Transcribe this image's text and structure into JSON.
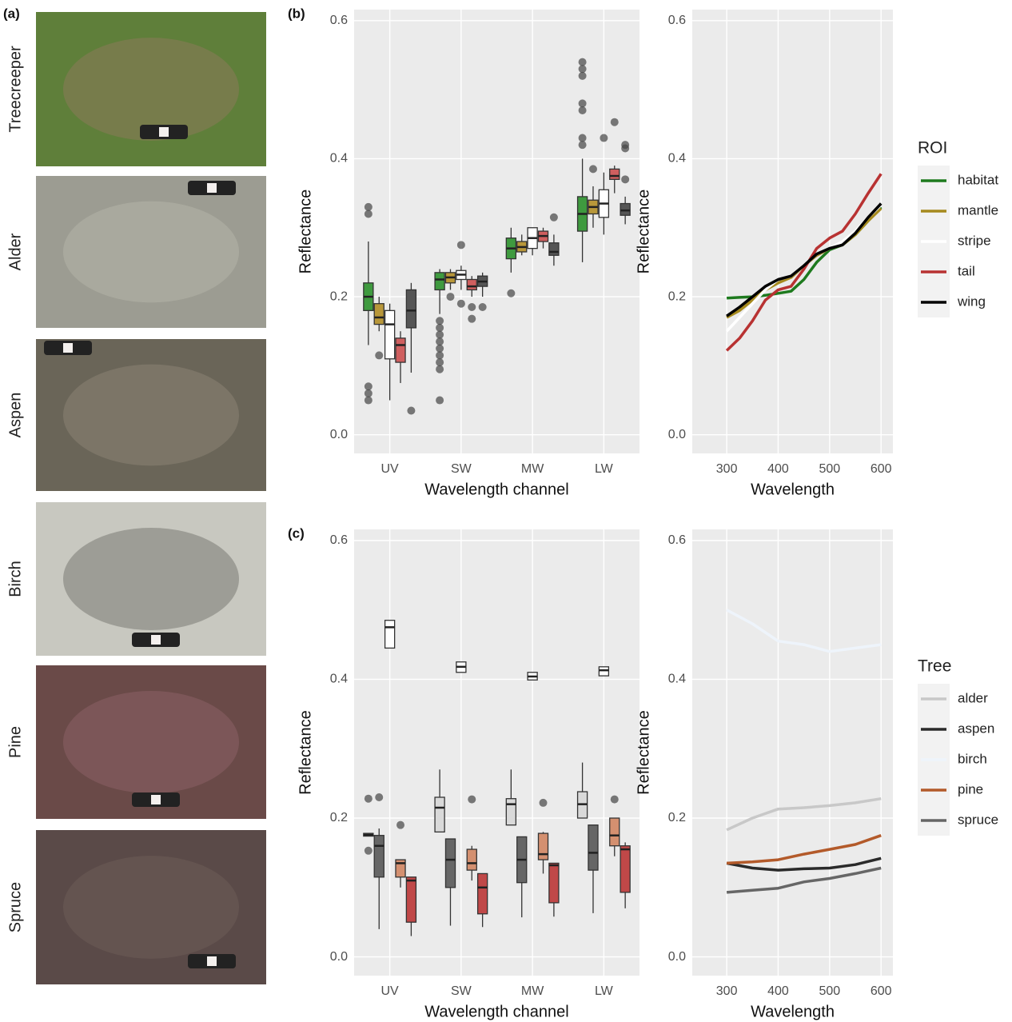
{
  "photo_panel": {
    "label": "(a)",
    "photos": [
      "Treecreeper",
      "Alder",
      "Aspen",
      "Birch",
      "Pine",
      "Spruce"
    ]
  },
  "chart_data": [
    {
      "type": "boxplot",
      "panel_label": "(b)",
      "x_label": "Wavelength channel",
      "y_label": "Reflectance",
      "categories": [
        "UV",
        "SW",
        "MW",
        "LW"
      ],
      "ylim": [
        -0.027,
        0.616
      ],
      "yticks": [
        {
          "value": 0,
          "label": "0.0"
        },
        0.2,
        0.4,
        0.6
      ],
      "grid": true,
      "series": [
        {
          "color": "#3f9a3f",
          "values": [
            {
              "low": 0.13,
              "q1": 0.18,
              "median": 0.2,
              "q3": 0.22,
              "high": 0.28,
              "outliers": [
                0.33,
                0.32,
                0.07,
                0.06,
                0.05
              ]
            },
            {
              "low": 0.175,
              "q1": 0.21,
              "median": 0.225,
              "q3": 0.235,
              "high": 0.24,
              "outliers": [
                0.165,
                0.155,
                0.145,
                0.135,
                0.125,
                0.115,
                0.105,
                0.095,
                0.05
              ]
            },
            {
              "low": 0.235,
              "q1": 0.255,
              "median": 0.27,
              "q3": 0.285,
              "high": 0.3,
              "outliers": [
                0.205
              ]
            },
            {
              "low": 0.25,
              "q1": 0.295,
              "median": 0.32,
              "q3": 0.345,
              "high": 0.4,
              "outliers": [
                0.54,
                0.53,
                0.52,
                0.48,
                0.47,
                0.43,
                0.42
              ]
            }
          ]
        },
        {
          "color": "#b8973a",
          "values": [
            {
              "low": 0.15,
              "q1": 0.16,
              "median": 0.17,
              "q3": 0.19,
              "high": 0.2,
              "outliers": [
                0.115
              ]
            },
            {
              "low": 0.21,
              "q1": 0.22,
              "median": 0.228,
              "q3": 0.235,
              "high": 0.24,
              "outliers": [
                0.2
              ]
            },
            {
              "low": 0.26,
              "q1": 0.265,
              "median": 0.272,
              "q3": 0.28,
              "high": 0.29,
              "outliers": []
            },
            {
              "low": 0.3,
              "q1": 0.32,
              "median": 0.33,
              "q3": 0.34,
              "high": 0.36,
              "outliers": [
                0.385
              ]
            }
          ]
        },
        {
          "color": "#ffffff",
          "values": [
            {
              "low": 0.05,
              "q1": 0.11,
              "median": 0.16,
              "q3": 0.18,
              "high": 0.19,
              "outliers": []
            },
            {
              "low": 0.21,
              "q1": 0.225,
              "median": 0.232,
              "q3": 0.238,
              "high": 0.245,
              "outliers": [
                0.275,
                0.19
              ]
            },
            {
              "low": 0.26,
              "q1": 0.27,
              "median": 0.285,
              "q3": 0.3,
              "high": 0.3,
              "outliers": []
            },
            {
              "low": 0.29,
              "q1": 0.315,
              "median": 0.335,
              "q3": 0.355,
              "high": 0.38,
              "outliers": [
                0.43
              ]
            }
          ]
        },
        {
          "color": "#cf5f5f",
          "values": [
            {
              "low": 0.075,
              "q1": 0.105,
              "median": 0.13,
              "q3": 0.14,
              "high": 0.15,
              "outliers": []
            },
            {
              "low": 0.2,
              "q1": 0.21,
              "median": 0.215,
              "q3": 0.225,
              "high": 0.23,
              "outliers": [
                0.185,
                0.168
              ]
            },
            {
              "low": 0.27,
              "q1": 0.28,
              "median": 0.288,
              "q3": 0.295,
              "high": 0.3,
              "outliers": []
            },
            {
              "low": 0.35,
              "q1": 0.37,
              "median": 0.375,
              "q3": 0.385,
              "high": 0.39,
              "outliers": [
                0.453
              ]
            }
          ]
        },
        {
          "color": "#555555",
          "values": [
            {
              "low": 0.09,
              "q1": 0.155,
              "median": 0.18,
              "q3": 0.21,
              "high": 0.22,
              "outliers": [
                0.035
              ]
            },
            {
              "low": 0.2,
              "q1": 0.215,
              "median": 0.222,
              "q3": 0.23,
              "high": 0.235,
              "outliers": [
                0.185
              ]
            },
            {
              "low": 0.245,
              "q1": 0.26,
              "median": 0.265,
              "q3": 0.278,
              "high": 0.29,
              "outliers": [
                0.315
              ]
            },
            {
              "low": 0.305,
              "q1": 0.318,
              "median": 0.325,
              "q3": 0.335,
              "high": 0.345,
              "outliers": [
                0.42,
                0.415,
                0.37
              ]
            }
          ]
        }
      ]
    },
    {
      "type": "line",
      "x_label": "Wavelength",
      "y_label": "Reflectance",
      "x": [
        300,
        325,
        350,
        375,
        400,
        425,
        450,
        475,
        500,
        525,
        550,
        575,
        600
      ],
      "xlim": [
        233,
        623
      ],
      "xticks": [
        300,
        400,
        500,
        600
      ],
      "ylim": [
        -0.027,
        0.616
      ],
      "yticks": [
        {
          "value": 0,
          "label": "0.0"
        },
        0.2,
        0.4,
        0.6
      ],
      "grid": true,
      "legend_title": "ROI",
      "legend": "right",
      "series": [
        {
          "name": "habitat",
          "color": "#1e7a1e",
          "values": [
            0.198,
            0.199,
            0.2,
            0.202,
            0.205,
            0.208,
            0.225,
            0.25,
            0.268,
            0.275,
            0.29,
            0.31,
            0.33
          ]
        },
        {
          "name": "mantle",
          "color": "#a68a1e",
          "values": [
            0.17,
            0.18,
            0.195,
            0.21,
            0.22,
            0.228,
            0.245,
            0.26,
            0.27,
            0.275,
            0.29,
            0.31,
            0.328
          ]
        },
        {
          "name": "stripe",
          "color": "#ffffff",
          "values": [
            0.15,
            0.17,
            0.19,
            0.21,
            0.225,
            0.23,
            0.245,
            0.262,
            0.27,
            0.28,
            0.295,
            0.315,
            0.333
          ]
        },
        {
          "name": "tail",
          "color": "#b83232",
          "values": [
            0.122,
            0.14,
            0.165,
            0.195,
            0.21,
            0.215,
            0.24,
            0.27,
            0.285,
            0.295,
            0.32,
            0.35,
            0.378
          ]
        },
        {
          "name": "wing",
          "color": "#000000",
          "values": [
            0.172,
            0.185,
            0.2,
            0.215,
            0.225,
            0.23,
            0.245,
            0.262,
            0.27,
            0.275,
            0.292,
            0.315,
            0.335
          ]
        }
      ]
    },
    {
      "type": "boxplot",
      "panel_label": "(c)",
      "x_label": "Wavelength channel",
      "y_label": "Reflectance",
      "categories": [
        "UV",
        "SW",
        "MW",
        "LW"
      ],
      "ylim": [
        -0.027,
        0.616
      ],
      "yticks": [
        {
          "value": 0,
          "label": "0.0"
        },
        0.2,
        0.4,
        0.6
      ],
      "grid": true,
      "series": [
        {
          "color": "#d9d9d9",
          "values": [
            {
              "low": 0.174,
              "q1": 0.174,
              "median": 0.176,
              "q3": 0.178,
              "high": 0.178,
              "outliers": [
                0.228,
                0.153
              ]
            },
            {
              "low": 0.18,
              "q1": 0.18,
              "median": 0.215,
              "q3": 0.23,
              "high": 0.27,
              "outliers": []
            },
            {
              "low": 0.19,
              "q1": 0.19,
              "median": 0.22,
              "q3": 0.228,
              "high": 0.27,
              "outliers": []
            },
            {
              "low": 0.2,
              "q1": 0.2,
              "median": 0.22,
              "q3": 0.238,
              "high": 0.28,
              "outliers": []
            }
          ]
        },
        {
          "color": "#666666",
          "values": [
            {
              "low": 0.04,
              "q1": 0.115,
              "median": 0.16,
              "q3": 0.175,
              "high": 0.185,
              "outliers": [
                0.23
              ]
            },
            {
              "low": 0.045,
              "q1": 0.1,
              "median": 0.14,
              "q3": 0.17,
              "high": 0.17,
              "outliers": []
            },
            {
              "low": 0.057,
              "q1": 0.107,
              "median": 0.14,
              "q3": 0.173,
              "high": 0.173,
              "outliers": []
            },
            {
              "low": 0.063,
              "q1": 0.125,
              "median": 0.15,
              "q3": 0.19,
              "high": 0.19,
              "outliers": []
            }
          ]
        },
        {
          "color": "#ffffff",
          "values": [
            {
              "low": 0.445,
              "q1": 0.445,
              "median": 0.475,
              "q3": 0.485,
              "high": 0.485,
              "outliers": []
            },
            {
              "low": 0.41,
              "q1": 0.41,
              "median": 0.418,
              "q3": 0.425,
              "high": 0.425,
              "outliers": []
            },
            {
              "low": 0.399,
              "q1": 0.399,
              "median": 0.404,
              "q3": 0.41,
              "high": 0.41,
              "outliers": []
            },
            {
              "low": 0.405,
              "q1": 0.405,
              "median": 0.413,
              "q3": 0.418,
              "high": 0.418,
              "outliers": []
            }
          ]
        },
        {
          "color": "#d49070",
          "values": [
            {
              "low": 0.1,
              "q1": 0.115,
              "median": 0.135,
              "q3": 0.14,
              "high": 0.14,
              "outliers": [
                0.19
              ]
            },
            {
              "low": 0.11,
              "q1": 0.125,
              "median": 0.135,
              "q3": 0.155,
              "high": 0.16,
              "outliers": [
                0.227
              ]
            },
            {
              "low": 0.12,
              "q1": 0.14,
              "median": 0.148,
              "q3": 0.178,
              "high": 0.18,
              "outliers": [
                0.222
              ]
            },
            {
              "low": 0.145,
              "q1": 0.16,
              "median": 0.175,
              "q3": 0.2,
              "high": 0.2,
              "outliers": [
                0.227
              ]
            }
          ]
        },
        {
          "color": "#c04848",
          "values": [
            {
              "low": 0.03,
              "q1": 0.05,
              "median": 0.11,
              "q3": 0.115,
              "high": 0.115,
              "outliers": []
            },
            {
              "low": 0.043,
              "q1": 0.062,
              "median": 0.1,
              "q3": 0.12,
              "high": 0.12,
              "outliers": []
            },
            {
              "low": 0.058,
              "q1": 0.078,
              "median": 0.132,
              "q3": 0.135,
              "high": 0.135,
              "outliers": []
            },
            {
              "low": 0.07,
              "q1": 0.093,
              "median": 0.155,
              "q3": 0.16,
              "high": 0.165,
              "outliers": []
            }
          ]
        }
      ]
    },
    {
      "type": "line",
      "x_label": "Wavelength",
      "y_label": "Reflectance",
      "x": [
        300,
        350,
        400,
        450,
        500,
        550,
        600
      ],
      "xlim": [
        233,
        623
      ],
      "xticks": [
        300,
        400,
        500,
        600
      ],
      "ylim": [
        -0.027,
        0.616
      ],
      "yticks": [
        {
          "value": 0,
          "label": "0.0"
        },
        0.2,
        0.4,
        0.6
      ],
      "grid": true,
      "legend_title": "Tree",
      "legend": "right",
      "series": [
        {
          "name": "alder",
          "color": "#c8c8c8",
          "values": [
            0.183,
            0.2,
            0.213,
            0.215,
            0.218,
            0.222,
            0.228
          ]
        },
        {
          "name": "aspen",
          "color": "#2a2a2a",
          "values": [
            0.135,
            0.128,
            0.125,
            0.127,
            0.128,
            0.133,
            0.142
          ]
        },
        {
          "name": "birch",
          "color": "#eef4fb",
          "values": [
            0.5,
            0.48,
            0.455,
            0.45,
            0.44,
            0.445,
            0.45
          ]
        },
        {
          "name": "pine",
          "color": "#b35a2a",
          "values": [
            0.135,
            0.137,
            0.14,
            0.148,
            0.155,
            0.162,
            0.175
          ]
        },
        {
          "name": "spruce",
          "color": "#666666",
          "values": [
            0.093,
            0.096,
            0.099,
            0.108,
            0.113,
            0.12,
            0.128
          ]
        }
      ]
    }
  ]
}
